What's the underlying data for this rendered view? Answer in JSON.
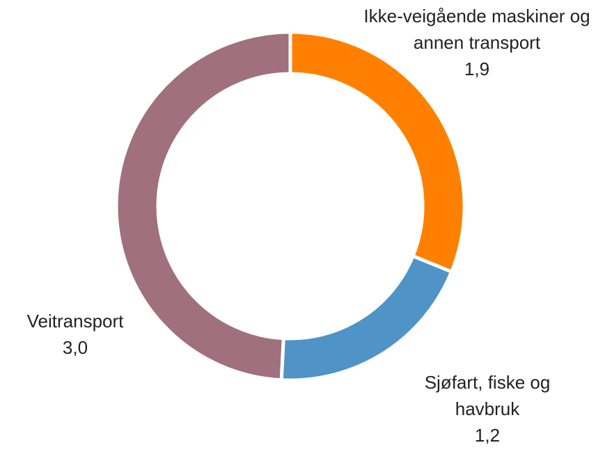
{
  "chart_data": {
    "type": "donut",
    "categories": [
      "Ikke-veigående maskiner og annen transport",
      "Sjøfart, fiske og havbruk",
      "Veitransport"
    ],
    "values": [
      1.9,
      1.2,
      3.0
    ],
    "value_labels": [
      "1,9",
      "1,2",
      "3,0"
    ],
    "colors": [
      "#ff8000",
      "#5093c6",
      "#a0707e"
    ]
  }
}
